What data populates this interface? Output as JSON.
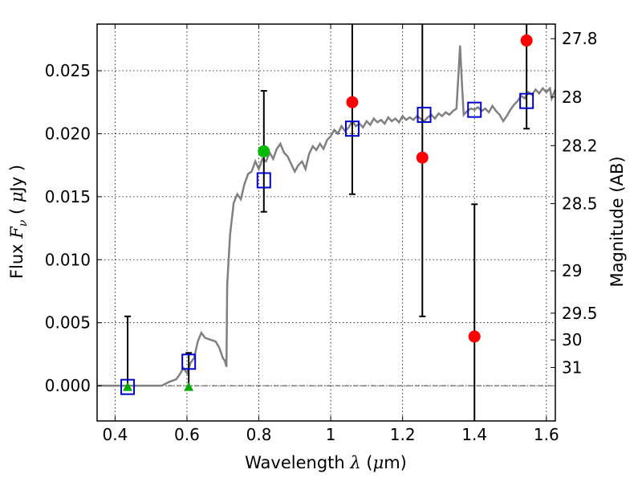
{
  "chart_data": {
    "type": "scatter",
    "xlabel": {
      "prefix": "Wavelength  ",
      "symbol": "λ",
      "units_open": " (",
      "units_symbol": "μ",
      "units_close": "m)"
    },
    "ylabel": {
      "prefix": "Flux  ",
      "symbol_main": "F",
      "symbol_sub": "ν",
      "units_open": "  ( ",
      "units_symbol": "μ",
      "units_close": "Jy )"
    },
    "y2label": "Magnitude (AB)",
    "xlim": [
      0.35,
      1.625
    ],
    "ylim": [
      -0.0028,
      0.0287
    ],
    "xticks": [
      {
        "value": 0.4,
        "label": "0.4"
      },
      {
        "value": 0.6,
        "label": "0.6"
      },
      {
        "value": 0.8,
        "label": "0.8"
      },
      {
        "value": 1.0,
        "label": "1"
      },
      {
        "value": 1.2,
        "label": "1.2"
      },
      {
        "value": 1.4,
        "label": "1.4"
      },
      {
        "value": 1.6,
        "label": "1.6"
      }
    ],
    "yticks": [
      {
        "value": 0.0,
        "label": "0.000"
      },
      {
        "value": 0.005,
        "label": "0.005"
      },
      {
        "value": 0.01,
        "label": "0.010"
      },
      {
        "value": 0.015,
        "label": "0.015"
      },
      {
        "value": 0.02,
        "label": "0.020"
      },
      {
        "value": 0.025,
        "label": "0.025"
      }
    ],
    "magnitude_ticks": [
      {
        "value": 27.8,
        "label": "27.8"
      },
      {
        "value": 28.0,
        "label": "28"
      },
      {
        "value": 28.2,
        "label": "28.2"
      },
      {
        "value": 28.5,
        "label": "28.5"
      },
      {
        "value": 29.0,
        "label": "29"
      },
      {
        "value": 29.5,
        "label": "29.5"
      },
      {
        "value": 30.0,
        "label": "30"
      },
      {
        "value": 31.0,
        "label": "31"
      }
    ],
    "grid": true,
    "zero_line": true,
    "model_spectrum": {
      "color": "#808080",
      "points": [
        [
          0.35,
          0.0
        ],
        [
          0.53,
          0.0
        ],
        [
          0.55,
          0.0003
        ],
        [
          0.57,
          0.0005
        ],
        [
          0.58,
          0.0009
        ],
        [
          0.59,
          0.0014
        ],
        [
          0.6,
          0.001
        ],
        [
          0.61,
          0.0018
        ],
        [
          0.62,
          0.0022
        ],
        [
          0.63,
          0.0035
        ],
        [
          0.64,
          0.0042
        ],
        [
          0.65,
          0.0038
        ],
        [
          0.66,
          0.0037
        ],
        [
          0.67,
          0.0036
        ],
        [
          0.68,
          0.0035
        ],
        [
          0.69,
          0.003
        ],
        [
          0.7,
          0.0022
        ],
        [
          0.705,
          0.002
        ],
        [
          0.71,
          0.0015
        ],
        [
          0.712,
          0.008
        ],
        [
          0.72,
          0.012
        ],
        [
          0.73,
          0.0145
        ],
        [
          0.74,
          0.0152
        ],
        [
          0.75,
          0.0148
        ],
        [
          0.76,
          0.016
        ],
        [
          0.77,
          0.0168
        ],
        [
          0.78,
          0.017
        ],
        [
          0.79,
          0.0178
        ],
        [
          0.8,
          0.0172
        ],
        [
          0.81,
          0.018
        ],
        [
          0.82,
          0.0178
        ],
        [
          0.83,
          0.0185
        ],
        [
          0.84,
          0.018
        ],
        [
          0.85,
          0.0188
        ],
        [
          0.86,
          0.0192
        ],
        [
          0.87,
          0.0185
        ],
        [
          0.88,
          0.0182
        ],
        [
          0.89,
          0.0176
        ],
        [
          0.9,
          0.017
        ],
        [
          0.91,
          0.0175
        ],
        [
          0.92,
          0.0178
        ],
        [
          0.93,
          0.0172
        ],
        [
          0.94,
          0.0184
        ],
        [
          0.95,
          0.019
        ],
        [
          0.96,
          0.0187
        ],
        [
          0.97,
          0.0192
        ],
        [
          0.98,
          0.0188
        ],
        [
          0.99,
          0.0195
        ],
        [
          1.0,
          0.0198
        ],
        [
          1.01,
          0.0203
        ],
        [
          1.02,
          0.02
        ],
        [
          1.03,
          0.0206
        ],
        [
          1.04,
          0.0202
        ],
        [
          1.05,
          0.0205
        ],
        [
          1.06,
          0.021
        ],
        [
          1.07,
          0.0206
        ],
        [
          1.08,
          0.0208
        ],
        [
          1.09,
          0.0205
        ],
        [
          1.1,
          0.021
        ],
        [
          1.11,
          0.0207
        ],
        [
          1.12,
          0.0212
        ],
        [
          1.13,
          0.0209
        ],
        [
          1.14,
          0.0211
        ],
        [
          1.15,
          0.0208
        ],
        [
          1.16,
          0.0213
        ],
        [
          1.17,
          0.021
        ],
        [
          1.18,
          0.0212
        ],
        [
          1.19,
          0.0209
        ],
        [
          1.2,
          0.0214
        ],
        [
          1.21,
          0.0211
        ],
        [
          1.22,
          0.0213
        ],
        [
          1.23,
          0.0211
        ],
        [
          1.24,
          0.0214
        ],
        [
          1.25,
          0.0212
        ],
        [
          1.26,
          0.021
        ],
        [
          1.27,
          0.0213
        ],
        [
          1.28,
          0.0215
        ],
        [
          1.29,
          0.0212
        ],
        [
          1.3,
          0.0216
        ],
        [
          1.31,
          0.0214
        ],
        [
          1.32,
          0.0217
        ],
        [
          1.33,
          0.0215
        ],
        [
          1.34,
          0.0218
        ],
        [
          1.35,
          0.022
        ],
        [
          1.355,
          0.0245
        ],
        [
          1.36,
          0.027
        ],
        [
          1.365,
          0.024
        ],
        [
          1.37,
          0.0215
        ],
        [
          1.38,
          0.0218
        ],
        [
          1.39,
          0.022
        ],
        [
          1.4,
          0.0219
        ],
        [
          1.41,
          0.0221
        ],
        [
          1.42,
          0.0218
        ],
        [
          1.43,
          0.022
        ],
        [
          1.44,
          0.0217
        ],
        [
          1.45,
          0.0222
        ],
        [
          1.46,
          0.0218
        ],
        [
          1.47,
          0.0215
        ],
        [
          1.48,
          0.021
        ],
        [
          1.49,
          0.0214
        ],
        [
          1.5,
          0.0219
        ],
        [
          1.51,
          0.0223
        ],
        [
          1.52,
          0.0226
        ],
        [
          1.53,
          0.023
        ],
        [
          1.54,
          0.0228
        ],
        [
          1.55,
          0.0233
        ],
        [
          1.56,
          0.0231
        ],
        [
          1.57,
          0.0235
        ],
        [
          1.58,
          0.0232
        ],
        [
          1.59,
          0.0236
        ],
        [
          1.6,
          0.0233
        ],
        [
          1.61,
          0.0236
        ],
        [
          1.615,
          0.0228
        ],
        [
          1.625,
          0.0235
        ]
      ]
    },
    "model_photometry": {
      "color": "#0000cc",
      "marker": "open-square",
      "points": [
        [
          0.435,
          -0.0001
        ],
        [
          0.605,
          0.0019
        ],
        [
          0.814,
          0.0163
        ],
        [
          1.06,
          0.0204
        ],
        [
          1.26,
          0.0215
        ],
        [
          1.4,
          0.0219
        ],
        [
          1.545,
          0.0226
        ]
      ]
    },
    "observed_detections": {
      "color": "#ff0000",
      "marker": "filled-circle",
      "points": [
        {
          "x": 1.06,
          "y": 0.0225,
          "ylo": 0.0152,
          "yhi": 0.0295
        },
        {
          "x": 1.255,
          "y": 0.0181,
          "ylo": 0.0055,
          "yhi": 0.0295
        },
        {
          "x": 1.4,
          "y": 0.0039,
          "ylo": -0.0028,
          "yhi": 0.0144
        },
        {
          "x": 1.545,
          "y": 0.0274,
          "ylo": 0.0204,
          "yhi": 0.0295
        }
      ]
    },
    "observed_green": {
      "color": "#00bb00",
      "marker": "filled-circle",
      "points": [
        {
          "x": 0.814,
          "y": 0.0186,
          "ylo": 0.0138,
          "yhi": 0.0234
        }
      ]
    },
    "upper_limits": {
      "color": "#00aa00",
      "marker": "filled-triangle",
      "points": [
        {
          "x": 0.435,
          "y": -0.0001,
          "ylo": -0.0001,
          "yhi": 0.0055
        },
        {
          "x": 0.605,
          "y": -0.0001,
          "ylo": -0.0001,
          "yhi": 0.0026
        }
      ]
    }
  }
}
